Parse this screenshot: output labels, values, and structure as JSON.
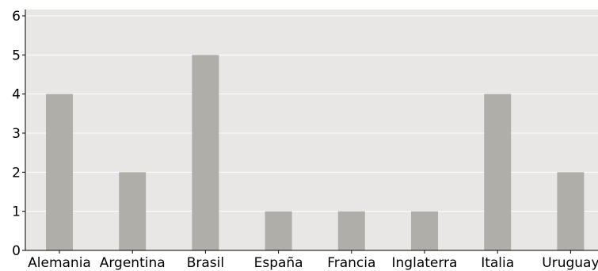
{
  "chart_data": {
    "type": "bar",
    "title": "",
    "xlabel": "",
    "ylabel": "",
    "categories": [
      "Alemania",
      "Argentina",
      "Brasil",
      "España",
      "Francia",
      "Inglaterra",
      "Italia",
      "Uruguay"
    ],
    "values": [
      4,
      2,
      5,
      1,
      1,
      1,
      4,
      2
    ],
    "ylim": [
      0,
      6
    ],
    "yticks": [
      "0",
      "1",
      "2",
      "3",
      "4",
      "5",
      "6"
    ],
    "grid": "horizontal",
    "legend": "none",
    "colors": {
      "bar": "#b0aea9",
      "plot_background": "#e8e7e6",
      "gridline": "#ffffff",
      "axis": "#000000"
    }
  }
}
